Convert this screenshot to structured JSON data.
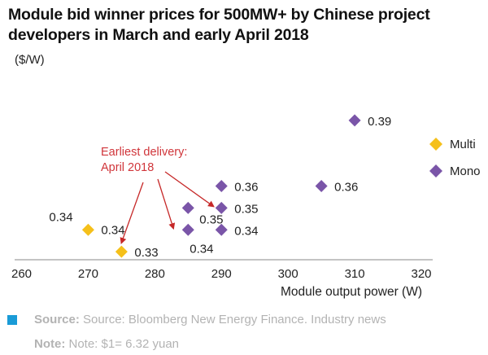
{
  "header": {
    "title": "Module bid winner prices for 500MW+ by Chinese project developers in March and early April 2018",
    "unit": "($/W)"
  },
  "chart_data": {
    "type": "scatter",
    "xlabel": "Module output power (W)",
    "ylabel": "($/W)",
    "xlim": [
      260,
      320
    ],
    "ylim": [
      0.32,
      0.4
    ],
    "x_ticks": [
      260,
      270,
      280,
      290,
      300,
      310,
      320
    ],
    "series": [
      {
        "name": "Multi",
        "color": "#f5c01a",
        "points": [
          {
            "x": 270,
            "y": 0.34,
            "label": "0.34"
          },
          {
            "x": 275,
            "y": 0.33,
            "label": "0.33"
          }
        ]
      },
      {
        "name": "Mono",
        "color": "#7a55a8",
        "points": [
          {
            "x": 285,
            "y": 0.35,
            "label": "0.35"
          },
          {
            "x": 285,
            "y": 0.34,
            "label": "0.34"
          },
          {
            "x": 290,
            "y": 0.36,
            "label": "0.36"
          },
          {
            "x": 290,
            "y": 0.35,
            "label": "0.35"
          },
          {
            "x": 290,
            "y": 0.34,
            "label": "0.34"
          },
          {
            "x": 305,
            "y": 0.36,
            "label": "0.36"
          },
          {
            "x": 310,
            "y": 0.39,
            "label": "0.39"
          }
        ]
      }
    ],
    "extra_labels": [
      "0.34"
    ],
    "annotation": {
      "lines": [
        "Earliest delivery:",
        "April 2018"
      ],
      "color": "#d0353a",
      "targets": [
        {
          "x": 275,
          "y": 0.33
        },
        {
          "x": 284,
          "y": 0.34
        },
        {
          "x": 290,
          "y": 0.35
        }
      ]
    },
    "legend_position": "right"
  },
  "footer": {
    "source_label": "Source:",
    "source_text": "Source: Bloomberg New Energy Finance. Industry news",
    "note_label": "Note:",
    "note_text": "Note: $1= 6.32 yuan",
    "source_color": "#1a9bd7"
  }
}
